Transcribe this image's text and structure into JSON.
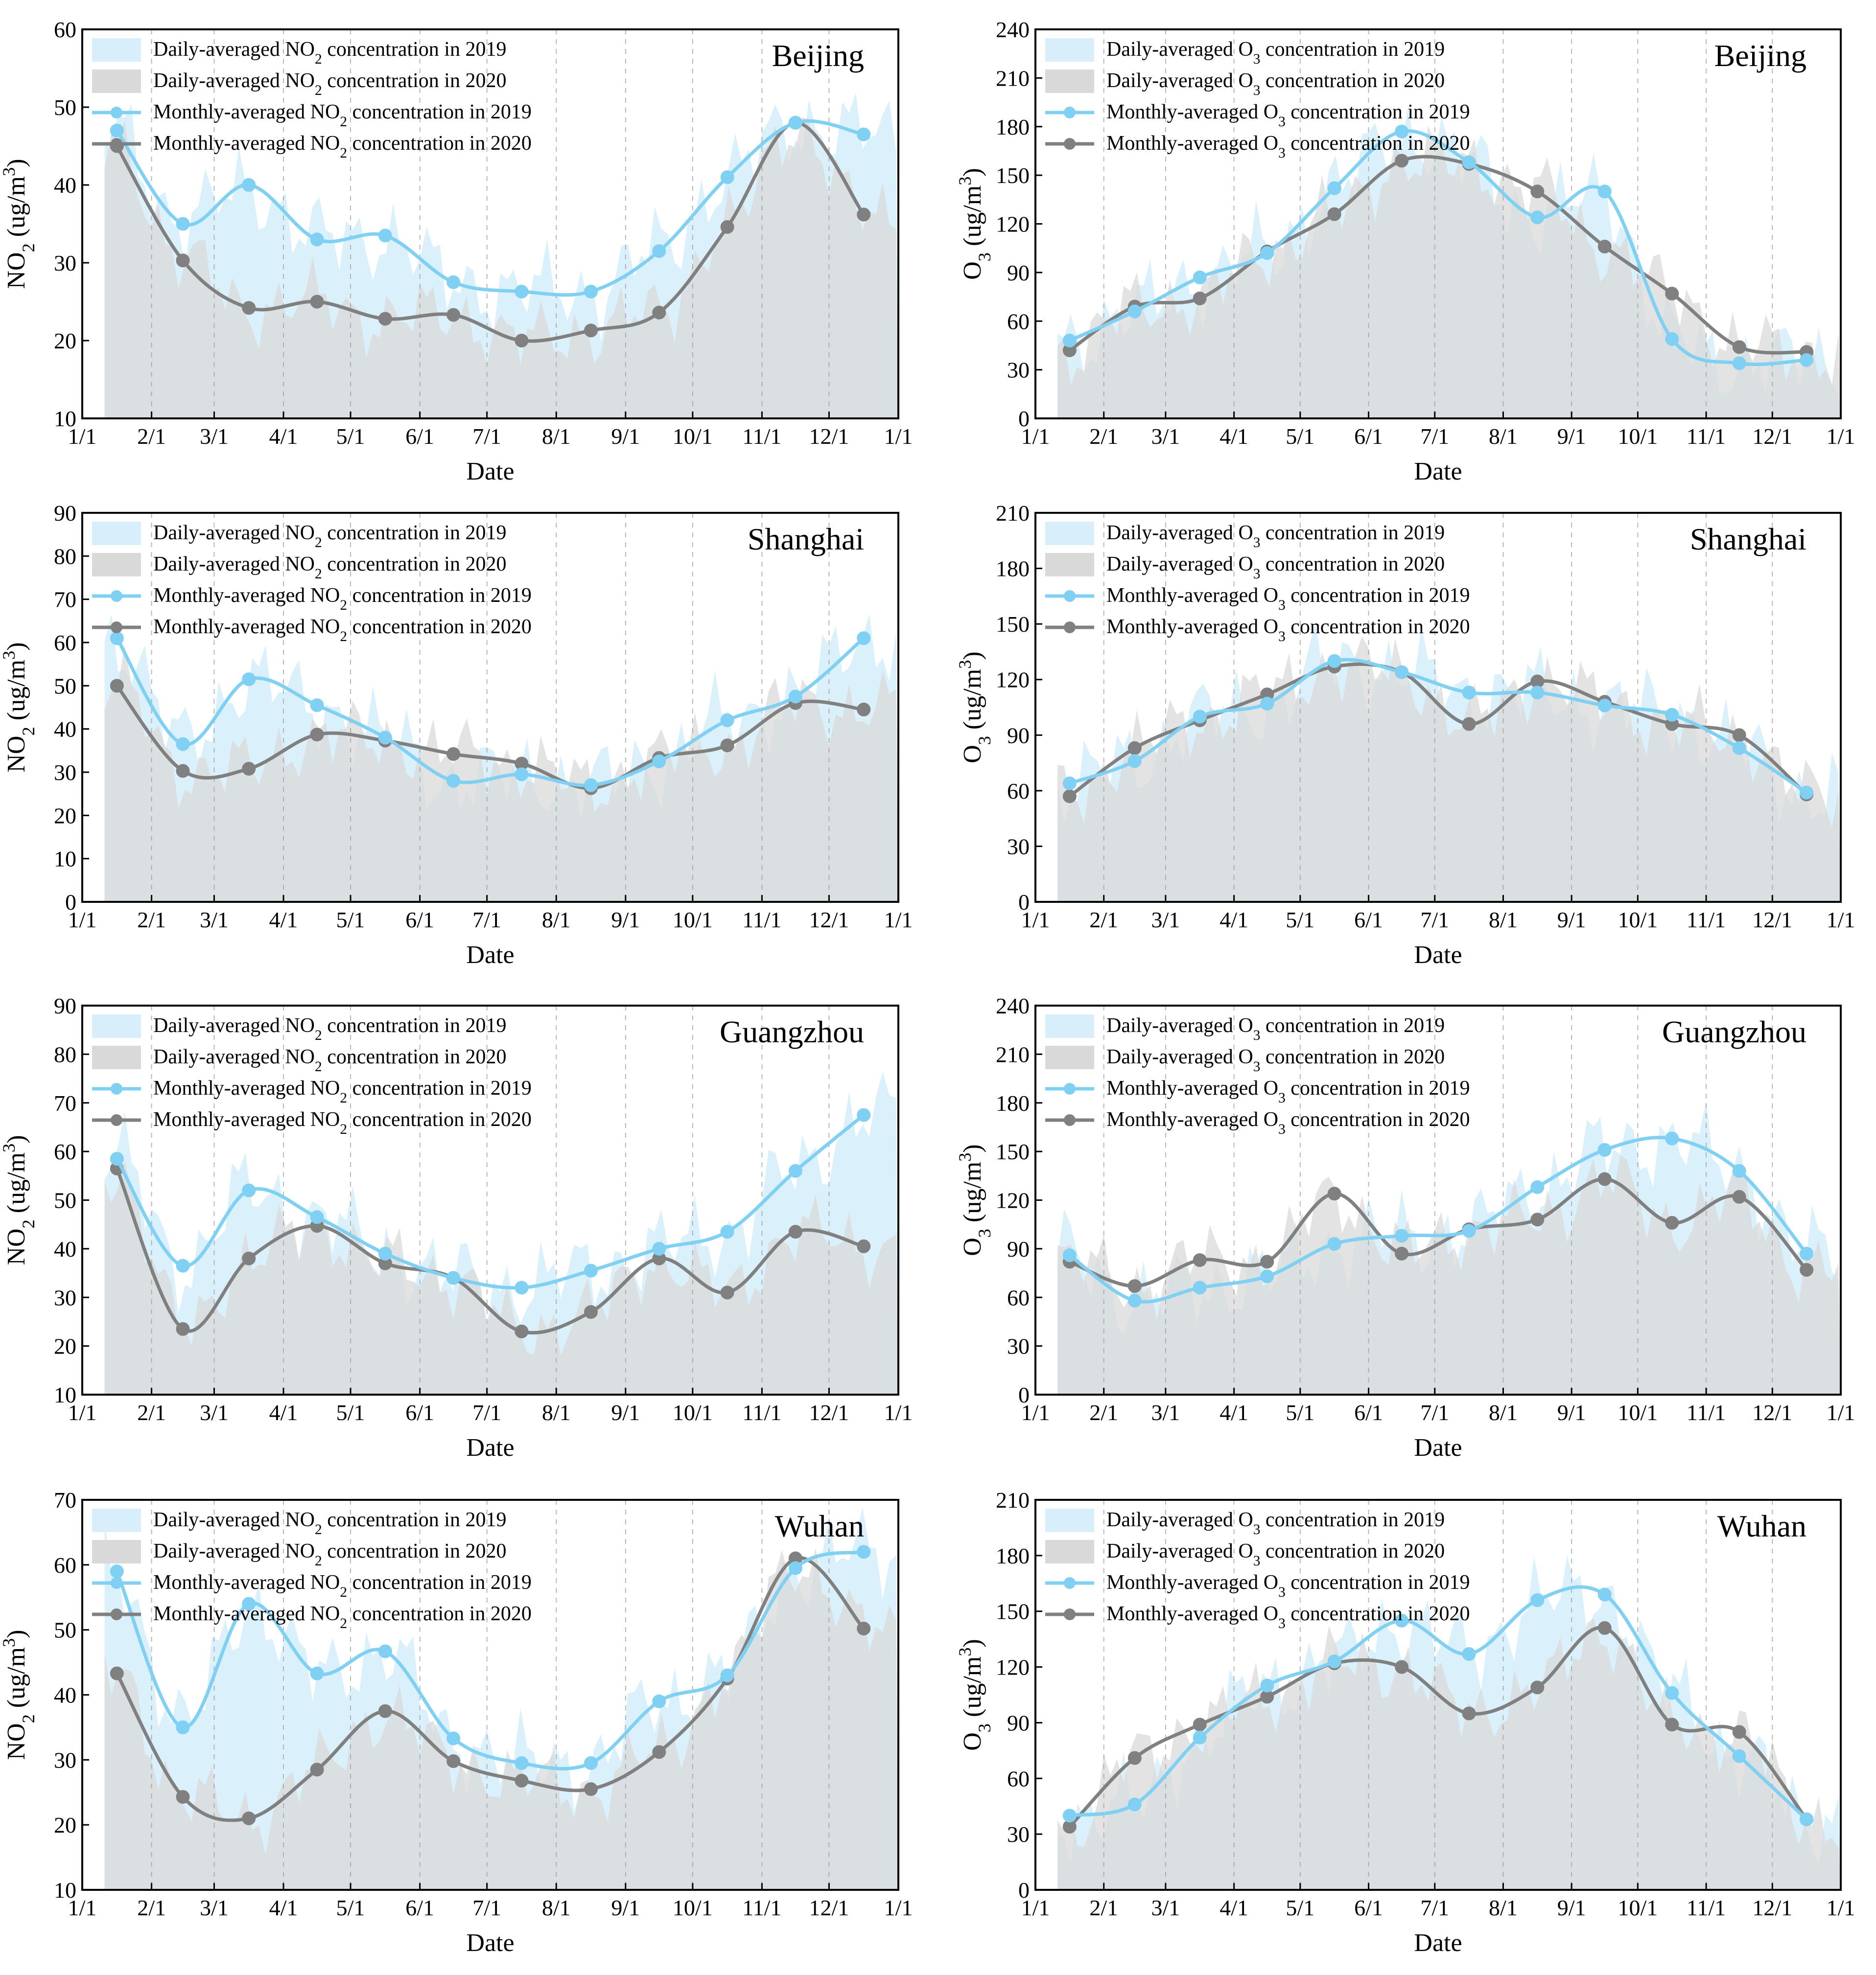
{
  "figure": {
    "colors": {
      "blue_line": "#7fd0f2",
      "blue_fill": "#d8effb",
      "gray_line": "#808080",
      "gray_fill": "#d9d9d9",
      "overlap_fill": "#c9dcdc",
      "grid": "#9a9a9a"
    }
  },
  "chart_data": [
    {
      "type": "line",
      "title": "Beijing",
      "pollutant": "NO2",
      "xlabel": "Date",
      "ylabel": "NO2 (ug/m3)",
      "x_ticks": [
        "1/1",
        "2/1",
        "3/1",
        "4/1",
        "5/1",
        "6/1",
        "7/1",
        "8/1",
        "9/1",
        "10/1",
        "11/1",
        "12/1",
        "1/1"
      ],
      "ylim": [
        10,
        60
      ],
      "y_ticks": [
        10,
        20,
        30,
        40,
        50,
        60
      ],
      "legend": [
        "Daily-averaged NO2 concentration in 2019",
        "Daily-averaged NO2 concentration in 2020",
        "Monthly-averaged NO2 concentration in 2019",
        "Monthly-averaged NO2 concentration in 2020"
      ],
      "months": [
        1,
        2,
        3,
        4,
        5,
        6,
        7,
        8,
        9,
        10,
        11,
        12
      ],
      "series": [
        {
          "name": "Monthly-averaged NO2 concentration in 2019",
          "values": [
            47,
            35,
            40,
            33,
            33.5,
            27.5,
            26.3,
            26.3,
            31.5,
            41,
            48,
            46.5
          ]
        },
        {
          "name": "Monthly-averaged NO2 concentration in 2020",
          "values": [
            45,
            30.3,
            24.2,
            25,
            22.8,
            23.3,
            20,
            21.3,
            23.6,
            34.6,
            48,
            36.2
          ]
        }
      ]
    },
    {
      "type": "line",
      "title": "Beijing",
      "pollutant": "O3",
      "xlabel": "Date",
      "ylabel": "O3 (ug/m3)",
      "x_ticks": [
        "1/1",
        "2/1",
        "3/1",
        "4/1",
        "5/1",
        "6/1",
        "7/1",
        "8/1",
        "9/1",
        "10/1",
        "11/1",
        "12/1",
        "1/1"
      ],
      "ylim": [
        0,
        240
      ],
      "y_ticks": [
        0,
        30,
        60,
        90,
        120,
        150,
        180,
        210,
        240
      ],
      "legend": [
        "Daily-averaged O3 concentration in 2019",
        "Daily-averaged O3 concentration in 2020",
        "Monthly-averaged O3 concentration in 2019",
        "Monthly-averaged O3 concentration in 2020"
      ],
      "months": [
        1,
        2,
        3,
        4,
        5,
        6,
        7,
        8,
        9,
        10,
        11,
        12
      ],
      "series": [
        {
          "name": "Monthly-averaged O3 concentration in 2019",
          "values": [
            48,
            66,
            87,
            102,
            142,
            177,
            158,
            124,
            140,
            49,
            34,
            36
          ]
        },
        {
          "name": "Monthly-averaged O3 concentration in 2020",
          "values": [
            42,
            69,
            74,
            103,
            126,
            159,
            157,
            140,
            106,
            77,
            44,
            41
          ]
        }
      ]
    },
    {
      "type": "line",
      "title": "Shanghai",
      "pollutant": "NO2",
      "xlabel": "Date",
      "ylabel": "NO2 (ug/m3)",
      "x_ticks": [
        "1/1",
        "2/1",
        "3/1",
        "4/1",
        "5/1",
        "6/1",
        "7/1",
        "8/1",
        "9/1",
        "10/1",
        "11/1",
        "12/1",
        "1/1"
      ],
      "ylim": [
        0,
        90
      ],
      "y_ticks": [
        0,
        10,
        20,
        30,
        40,
        50,
        60,
        70,
        80,
        90
      ],
      "legend": [
        "Daily-averaged NO2 concentration in 2019",
        "Daily-averaged NO2 concentration in 2020",
        "Monthly-averaged NO2 concentration in 2019",
        "Monthly-averaged NO2 concentration in 2020"
      ],
      "months": [
        1,
        2,
        3,
        4,
        5,
        6,
        7,
        8,
        9,
        10,
        11,
        12
      ],
      "series": [
        {
          "name": "Monthly-averaged NO2 concentration in 2019",
          "values": [
            61,
            36.5,
            51.5,
            45.5,
            38,
            28,
            29.5,
            27,
            32.5,
            42,
            47.5,
            61
          ]
        },
        {
          "name": "Monthly-averaged NO2 concentration in 2020",
          "values": [
            50,
            30.3,
            30.8,
            38.7,
            37.3,
            34.2,
            32,
            26.3,
            33.3,
            36.2,
            46,
            44.5
          ]
        }
      ]
    },
    {
      "type": "line",
      "title": "Shanghai",
      "pollutant": "O3",
      "xlabel": "Date",
      "ylabel": "O3 (ug/m3)",
      "x_ticks": [
        "1/1",
        "2/1",
        "3/1",
        "4/1",
        "5/1",
        "6/1",
        "7/1",
        "8/1",
        "9/1",
        "10/1",
        "11/1",
        "12/1",
        "1/1"
      ],
      "ylim": [
        0,
        210
      ],
      "y_ticks": [
        0,
        30,
        60,
        90,
        120,
        150,
        180,
        210
      ],
      "legend": [
        "Daily-averaged O3 concentration in 2019",
        "Daily-averaged O3 concentration in 2020",
        "Monthly-averaged O3 concentration in 2019",
        "Monthly-averaged O3 concentration in 2020"
      ],
      "months": [
        1,
        2,
        3,
        4,
        5,
        6,
        7,
        8,
        9,
        10,
        11,
        12
      ],
      "series": [
        {
          "name": "Monthly-averaged O3 concentration in 2019",
          "values": [
            64,
            76,
            100,
            107,
            130,
            124,
            113,
            113,
            106,
            101,
            83,
            59
          ]
        },
        {
          "name": "Monthly-averaged O3 concentration in 2020",
          "values": [
            57,
            83,
            98,
            112,
            127,
            124,
            96,
            119,
            108,
            96,
            90,
            58
          ]
        }
      ]
    },
    {
      "type": "line",
      "title": "Guangzhou",
      "pollutant": "NO2",
      "xlabel": "Date",
      "ylabel": "NO2 (ug/m3)",
      "x_ticks": [
        "1/1",
        "2/1",
        "3/1",
        "4/1",
        "5/1",
        "6/1",
        "7/1",
        "8/1",
        "9/1",
        "10/1",
        "11/1",
        "12/1",
        "1/1"
      ],
      "ylim": [
        10,
        90
      ],
      "y_ticks": [
        10,
        20,
        30,
        40,
        50,
        60,
        70,
        80,
        90
      ],
      "legend": [
        "Daily-averaged NO2 concentration in 2019",
        "Daily-averaged NO2 concentration in 2020",
        "Monthly-averaged NO2 concentration in 2019",
        "Monthly-averaged NO2 concentration in 2020"
      ],
      "months": [
        1,
        2,
        3,
        4,
        5,
        6,
        7,
        8,
        9,
        10,
        11,
        12
      ],
      "series": [
        {
          "name": "Monthly-averaged NO2 concentration in 2019",
          "values": [
            58.5,
            36.5,
            52,
            46.5,
            39,
            34,
            32,
            35.5,
            40,
            43.5,
            56,
            67.5
          ]
        },
        {
          "name": "Monthly-averaged NO2 concentration in 2020",
          "values": [
            56.5,
            23.5,
            38,
            44.7,
            37,
            34,
            23,
            27,
            38,
            31,
            43.5,
            40.5
          ]
        }
      ]
    },
    {
      "type": "line",
      "title": "Guangzhou",
      "pollutant": "O3",
      "xlabel": "Date",
      "ylabel": "O3 (ug/m3)",
      "x_ticks": [
        "1/1",
        "2/1",
        "3/1",
        "4/1",
        "5/1",
        "6/1",
        "7/1",
        "8/1",
        "9/1",
        "10/1",
        "11/1",
        "12/1",
        "1/1"
      ],
      "ylim": [
        0,
        240
      ],
      "y_ticks": [
        0,
        30,
        60,
        90,
        120,
        150,
        180,
        210,
        240
      ],
      "legend": [
        "Daily-averaged O3 concentration in 2019",
        "Daily-averaged O3 concentration in 2020",
        "Monthly-averaged O3 concentration in 2019",
        "Monthly-averaged O3 concentration in 2020"
      ],
      "months": [
        1,
        2,
        3,
        4,
        5,
        6,
        7,
        8,
        9,
        10,
        11,
        12
      ],
      "series": [
        {
          "name": "Monthly-averaged O3 concentration in 2019",
          "values": [
            86,
            58,
            66,
            73,
            93,
            98,
            101,
            128,
            151,
            158,
            138,
            87
          ]
        },
        {
          "name": "Monthly-averaged O3 concentration in 2020",
          "values": [
            82,
            67,
            83,
            82,
            124,
            87,
            102,
            108,
            133,
            106,
            122,
            77
          ]
        }
      ]
    },
    {
      "type": "line",
      "title": "Wuhan",
      "pollutant": "NO2",
      "xlabel": "Date",
      "ylabel": "NO2 (ug/m3)",
      "x_ticks": [
        "1/1",
        "2/1",
        "3/1",
        "4/1",
        "5/1",
        "6/1",
        "7/1",
        "8/1",
        "9/1",
        "10/1",
        "11/1",
        "12/1",
        "1/1"
      ],
      "ylim": [
        10,
        70
      ],
      "y_ticks": [
        10,
        20,
        30,
        40,
        50,
        60,
        70
      ],
      "legend": [
        "Daily-averaged NO2 concentration in 2019",
        "Daily-averaged NO2 concentration in 2020",
        "Monthly-averaged NO2 concentration in 2019",
        "Monthly-averaged NO2 concentration in 2020"
      ],
      "months": [
        1,
        2,
        3,
        4,
        5,
        6,
        7,
        8,
        9,
        10,
        11,
        12
      ],
      "series": [
        {
          "name": "Monthly-averaged NO2 concentration in 2019",
          "values": [
            59,
            35,
            54,
            43.3,
            46.7,
            33.3,
            29.5,
            29.5,
            39,
            43,
            59.5,
            62
          ]
        },
        {
          "name": "Monthly-averaged NO2 concentration in 2020",
          "values": [
            43.3,
            24.3,
            21,
            28.5,
            37.5,
            29.8,
            26.8,
            25.5,
            31.2,
            42.5,
            61,
            50.2
          ]
        }
      ]
    },
    {
      "type": "line",
      "title": "Wuhan",
      "pollutant": "O3",
      "xlabel": "Date",
      "ylabel": "O3 (ug/m3)",
      "x_ticks": [
        "1/1",
        "2/1",
        "3/1",
        "4/1",
        "5/1",
        "6/1",
        "7/1",
        "8/1",
        "9/1",
        "10/1",
        "11/1",
        "12/1",
        "1/1"
      ],
      "ylim": [
        0,
        210
      ],
      "y_ticks": [
        0,
        30,
        60,
        90,
        120,
        150,
        180,
        210
      ],
      "legend": [
        "Daily-averaged O3 concentration in 2019",
        "Daily-averaged O3 concentration in 2020",
        "Monthly-averaged O3 concentration in 2019",
        "Monthly-averaged O3 concentration in 2020"
      ],
      "months": [
        1,
        2,
        3,
        4,
        5,
        6,
        7,
        8,
        9,
        10,
        11,
        12
      ],
      "series": [
        {
          "name": "Monthly-averaged O3 concentration in 2019",
          "values": [
            40,
            46,
            82,
            110,
            123,
            145,
            127,
            156,
            159,
            106,
            72,
            38
          ]
        },
        {
          "name": "Monthly-averaged O3 concentration in 2020",
          "values": [
            34,
            71,
            89,
            104,
            122,
            120,
            95,
            109,
            141,
            89,
            85,
            38
          ]
        }
      ]
    }
  ]
}
